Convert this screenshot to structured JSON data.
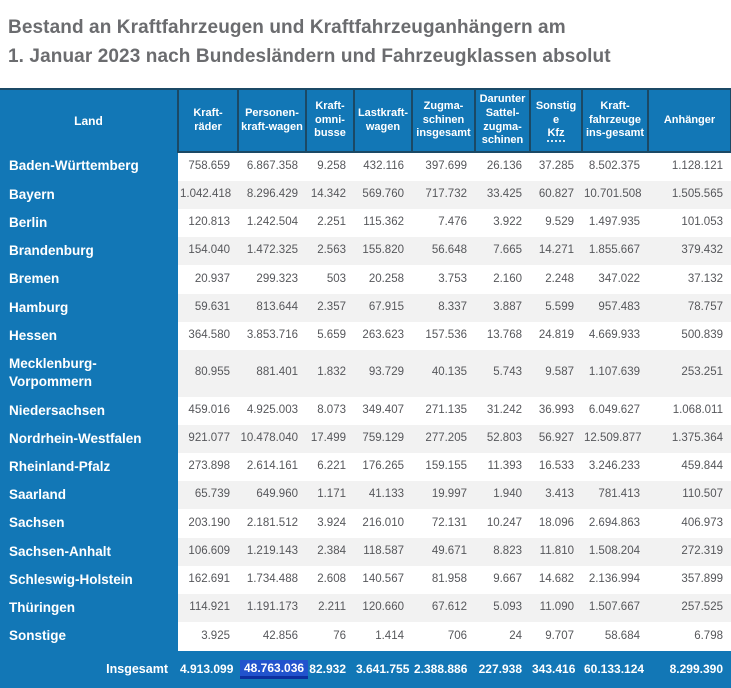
{
  "title": {
    "line1": "Bestand an Kraftfahrzeugen und Kraftfahrzeuganhängern am",
    "line2": "1. Januar 2023 nach Bundesländern und Fahrzeugklassen absolut"
  },
  "colors": {
    "primary_blue": "#1277b6",
    "header_border_navy": "#1b4965",
    "stripe_gray": "#f2f2f2",
    "number_text": "#56575b",
    "title_gray": "#6b6c6f",
    "selection_blue": "#2153cd",
    "selection_underline": "#0d2f9f"
  },
  "table": {
    "columns": [
      {
        "label": "Land"
      },
      {
        "label": "Kraft-räder"
      },
      {
        "label": "Personen-kraft-wagen"
      },
      {
        "label": "Kraft-omni-busse"
      },
      {
        "label": "Lastkraft-wagen"
      },
      {
        "label": "Zugma-schinen insgesamt"
      },
      {
        "label": "Darunter Sattel-zugma-schinen"
      },
      {
        "label": "Sonstige",
        "abbr": "Kfz"
      },
      {
        "label": "Kraft-fahrzeuge ins-gesamt"
      },
      {
        "label": "Anhänger"
      }
    ],
    "rows": [
      {
        "land": "Baden-Württemberg",
        "values": [
          "758.659",
          "6.867.358",
          "9.258",
          "432.116",
          "397.699",
          "26.136",
          "37.285",
          "8.502.375",
          "1.128.121"
        ]
      },
      {
        "land": "Bayern",
        "values": [
          "1.042.418",
          "8.296.429",
          "14.342",
          "569.760",
          "717.732",
          "33.425",
          "60.827",
          "10.701.508",
          "1.505.565"
        ]
      },
      {
        "land": "Berlin",
        "values": [
          "120.813",
          "1.242.504",
          "2.251",
          "115.362",
          "7.476",
          "3.922",
          "9.529",
          "1.497.935",
          "101.053"
        ]
      },
      {
        "land": "Brandenburg",
        "values": [
          "154.040",
          "1.472.325",
          "2.563",
          "155.820",
          "56.648",
          "7.665",
          "14.271",
          "1.855.667",
          "379.432"
        ]
      },
      {
        "land": "Bremen",
        "values": [
          "20.937",
          "299.323",
          "503",
          "20.258",
          "3.753",
          "2.160",
          "2.248",
          "347.022",
          "37.132"
        ]
      },
      {
        "land": "Hamburg",
        "values": [
          "59.631",
          "813.644",
          "2.357",
          "67.915",
          "8.337",
          "3.887",
          "5.599",
          "957.483",
          "78.757"
        ]
      },
      {
        "land": "Hessen",
        "values": [
          "364.580",
          "3.853.716",
          "5.659",
          "263.623",
          "157.536",
          "13.768",
          "24.819",
          "4.669.933",
          "500.839"
        ]
      },
      {
        "land": "Mecklenburg-Vorpommern",
        "values": [
          "80.955",
          "881.401",
          "1.832",
          "93.729",
          "40.135",
          "5.743",
          "9.587",
          "1.107.639",
          "253.251"
        ]
      },
      {
        "land": "Niedersachsen",
        "values": [
          "459.016",
          "4.925.003",
          "8.073",
          "349.407",
          "271.135",
          "31.242",
          "36.993",
          "6.049.627",
          "1.068.011"
        ]
      },
      {
        "land": "Nordrhein-Westfalen",
        "values": [
          "921.077",
          "10.478.040",
          "17.499",
          "759.129",
          "277.205",
          "52.803",
          "56.927",
          "12.509.877",
          "1.375.364"
        ]
      },
      {
        "land": "Rheinland-Pfalz",
        "values": [
          "273.898",
          "2.614.161",
          "6.221",
          "176.265",
          "159.155",
          "11.393",
          "16.533",
          "3.246.233",
          "459.844"
        ]
      },
      {
        "land": "Saarland",
        "values": [
          "65.739",
          "649.960",
          "1.171",
          "41.133",
          "19.997",
          "1.940",
          "3.413",
          "781.413",
          "110.507"
        ]
      },
      {
        "land": "Sachsen",
        "values": [
          "203.190",
          "2.181.512",
          "3.924",
          "216.010",
          "72.131",
          "10.247",
          "18.096",
          "2.694.863",
          "406.973"
        ]
      },
      {
        "land": "Sachsen-Anhalt",
        "values": [
          "106.609",
          "1.219.143",
          "2.384",
          "118.587",
          "49.671",
          "8.823",
          "11.810",
          "1.508.204",
          "272.319"
        ]
      },
      {
        "land": "Schleswig-Holstein",
        "values": [
          "162.691",
          "1.734.488",
          "2.608",
          "140.567",
          "81.958",
          "9.667",
          "14.682",
          "2.136.994",
          "357.899"
        ]
      },
      {
        "land": "Thüringen",
        "values": [
          "114.921",
          "1.191.173",
          "2.211",
          "120.660",
          "67.612",
          "5.093",
          "11.090",
          "1.507.667",
          "257.525"
        ]
      },
      {
        "land": "Sonstige",
        "values": [
          "3.925",
          "42.856",
          "76",
          "1.414",
          "706",
          "24",
          "9.707",
          "58.684",
          "6.798"
        ]
      }
    ],
    "total": {
      "label": "Insgesamt",
      "values": [
        "4.913.099",
        "48.763.036",
        "82.932",
        "3.641.755",
        "2.388.886",
        "227.938",
        "343.416",
        "60.133.124",
        "8.299.390"
      ],
      "highlighted_index": 1,
      "highlighted_value": "48.763.036"
    }
  }
}
